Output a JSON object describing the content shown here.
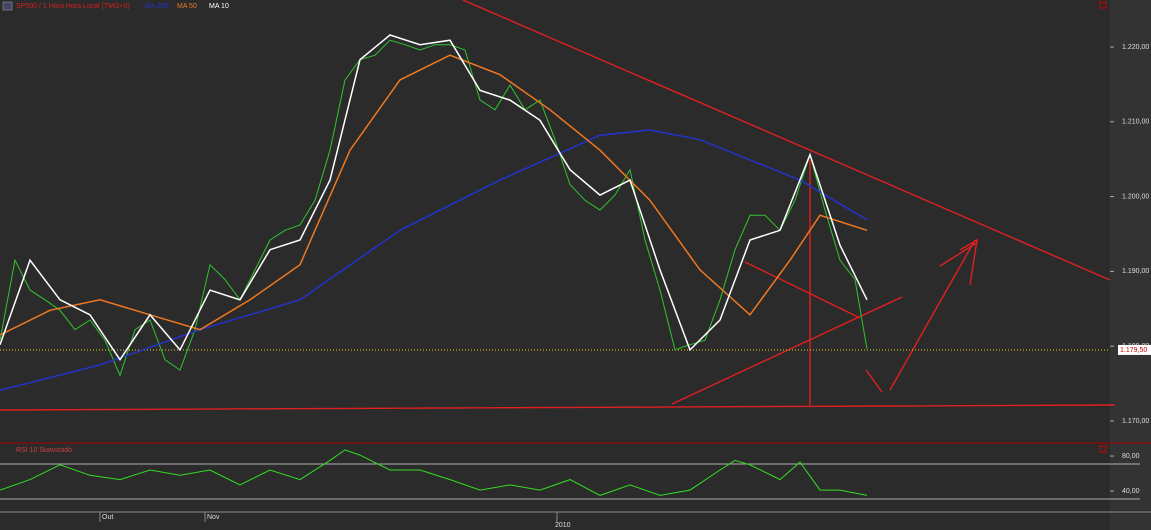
{
  "chart_data": [
    {
      "type": "line",
      "title": "SP500 / 1 Hora Hora Local (TMG+0)",
      "xlim": [
        0,
        222
      ],
      "ylim": [
        1167.06,
        1226.28
      ],
      "xticks": [
        {
          "value": 20,
          "label": "Out"
        },
        {
          "value": 41,
          "label": "Nov"
        },
        {
          "value": 111.4,
          "label": "2010"
        }
      ],
      "yticks": [
        {
          "value": 1170,
          "label": "1.170,00"
        },
        {
          "value": 1180,
          "label": "1.180,00"
        },
        {
          "value": 1190,
          "label": "1.190,00"
        },
        {
          "value": 1200,
          "label": "1.200,00"
        },
        {
          "value": 1210,
          "label": "1.210,00"
        },
        {
          "value": 1220,
          "label": "1.220,00"
        }
      ],
      "last_price": {
        "value": 1179.5,
        "label": "1.179,50"
      },
      "series": [
        {
          "name": "SP500",
          "color": "#2fc42f",
          "x": [
            0,
            3,
            6,
            9,
            12,
            15,
            18,
            21,
            24,
            27,
            30,
            33,
            36,
            39,
            42,
            45,
            48,
            51,
            54,
            57,
            60,
            63,
            66,
            69,
            72,
            75,
            78,
            81,
            84,
            87,
            90,
            93,
            96,
            99,
            102,
            105,
            108,
            111,
            114,
            117,
            120,
            123,
            126,
            129,
            132,
            135,
            138,
            141,
            144,
            147,
            150,
            153,
            156,
            159,
            162,
            165,
            168,
            171,
            173.4
          ],
          "values": [
            1180.8,
            1191.5,
            1187.5,
            1186.2,
            1184.8,
            1182.2,
            1183.5,
            1180.8,
            1176.1,
            1182.2,
            1183.5,
            1178.2,
            1176.8,
            1182.2,
            1190.9,
            1188.9,
            1186.2,
            1190.2,
            1194.2,
            1195.5,
            1196.2,
            1199.5,
            1206.2,
            1215.6,
            1218.3,
            1218.9,
            1220.9,
            1220.3,
            1219.6,
            1220.3,
            1220.3,
            1219.6,
            1212.9,
            1211.6,
            1214.9,
            1211.6,
            1212.9,
            1207.6,
            1201.6,
            1199.5,
            1198.2,
            1200.2,
            1203.6,
            1194.2,
            1187.5,
            1179.5,
            1180.2,
            1180.8,
            1186.2,
            1192.9,
            1197.5,
            1197.5,
            1195.5,
            1199.5,
            1205.6,
            1198.2,
            1191.5,
            1188.9,
            1179.6
          ]
        },
        {
          "name": "MA 200",
          "color": "#2233cc",
          "x": [
            0,
            20,
            40,
            60,
            80,
            100,
            120,
            130,
            140,
            160,
            173.4
          ],
          "values": [
            1174.1,
            1177.5,
            1182.2,
            1186.2,
            1195.5,
            1202.2,
            1208.2,
            1208.9,
            1207.6,
            1202.2,
            1196.9
          ]
        },
        {
          "name": "MA 50",
          "color": "#f07820",
          "x": [
            0,
            10,
            20,
            30,
            40,
            50,
            60,
            70,
            80,
            90,
            100,
            110,
            120,
            130,
            140,
            150,
            158,
            164,
            173.4
          ],
          "values": [
            1181.5,
            1184.8,
            1186.2,
            1184.2,
            1182.2,
            1186.2,
            1190.9,
            1206.2,
            1215.6,
            1218.9,
            1216.3,
            1211.6,
            1206.2,
            1199.5,
            1190.2,
            1184.2,
            1191.5,
            1197.5,
            1195.5
          ]
        },
        {
          "name": "MA 10",
          "color": "#ffffff",
          "x": [
            0,
            6,
            12,
            18,
            24,
            30,
            36,
            42,
            48,
            54,
            60,
            66,
            72,
            78,
            84,
            90,
            96,
            102,
            108,
            114,
            120,
            126,
            132,
            138,
            144,
            150,
            156,
            162,
            168,
            173.4
          ],
          "values": [
            1180.2,
            1191.5,
            1186.2,
            1184.2,
            1178.2,
            1184.2,
            1179.5,
            1187.5,
            1186.2,
            1192.9,
            1194.2,
            1202.2,
            1218.3,
            1221.6,
            1220.3,
            1220.9,
            1214.2,
            1212.9,
            1210.2,
            1203.6,
            1200.2,
            1202.2,
            1190.2,
            1179.5,
            1183.5,
            1194.2,
            1195.5,
            1205.6,
            1193.5,
            1186.2
          ]
        }
      ]
    },
    {
      "type": "line",
      "title": "RSI 10 Suavizado",
      "xlim": [
        0,
        222
      ],
      "ylim": [
        16,
        92.6
      ],
      "yticks": [
        {
          "value": 80,
          "label": "80,00"
        },
        {
          "value": 40,
          "label": "40,00"
        }
      ],
      "series": [
        {
          "name": "RSI 10 Suavizado",
          "color": "#33dd22",
          "x": [
            0,
            6,
            12,
            18,
            24,
            30,
            36,
            42,
            48,
            54,
            60,
            66,
            69,
            72,
            78,
            84,
            90,
            96,
            102,
            108,
            114,
            120,
            126,
            132,
            138,
            144,
            147,
            150,
            156,
            160,
            164,
            168,
            173.4
          ],
          "values": [
            41,
            53,
            70,
            58,
            53,
            64,
            58,
            64,
            47,
            64,
            53,
            75,
            87,
            81,
            64,
            64,
            53,
            41,
            47,
            41,
            53,
            35,
            47,
            35,
            41,
            64,
            75,
            70,
            53,
            73,
            41,
            41,
            35
          ]
        }
      ]
    }
  ]
}
